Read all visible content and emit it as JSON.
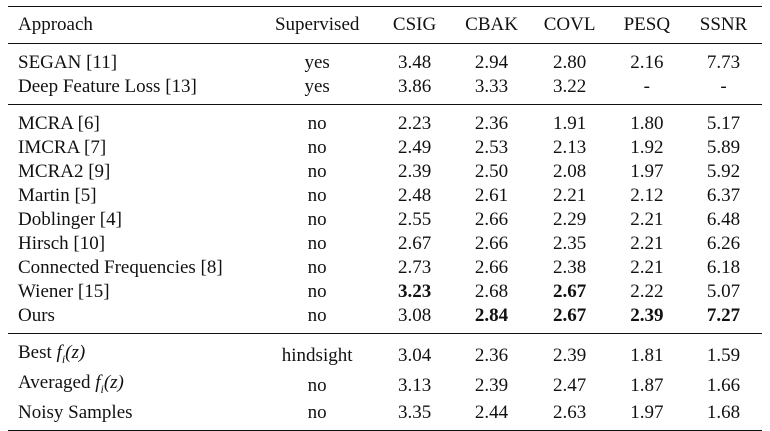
{
  "table": {
    "headers": [
      "Approach",
      "Supervised",
      "CSIG",
      "CBAK",
      "COVL",
      "PESQ",
      "SSNR"
    ],
    "groups": [
      [
        {
          "approach": "SEGAN [11]",
          "supervised": "yes",
          "csig": "3.48",
          "cbak": "2.94",
          "covl": "2.80",
          "pesq": "2.16",
          "ssnr": "7.73",
          "bold": []
        },
        {
          "approach": "Deep Feature Loss [13]",
          "supervised": "yes",
          "csig": "3.86",
          "cbak": "3.33",
          "covl": "3.22",
          "pesq": "-",
          "ssnr": "-",
          "bold": []
        }
      ],
      [
        {
          "approach": "MCRA [6]",
          "supervised": "no",
          "csig": "2.23",
          "cbak": "2.36",
          "covl": "1.91",
          "pesq": "1.80",
          "ssnr": "5.17",
          "bold": []
        },
        {
          "approach": "IMCRA [7]",
          "supervised": "no",
          "csig": "2.49",
          "cbak": "2.53",
          "covl": "2.13",
          "pesq": "1.92",
          "ssnr": "5.89",
          "bold": []
        },
        {
          "approach": "MCRA2 [9]",
          "supervised": "no",
          "csig": "2.39",
          "cbak": "2.50",
          "covl": "2.08",
          "pesq": "1.97",
          "ssnr": "5.92",
          "bold": []
        },
        {
          "approach": "Martin [5]",
          "supervised": "no",
          "csig": "2.48",
          "cbak": "2.61",
          "covl": "2.21",
          "pesq": "2.12",
          "ssnr": "6.37",
          "bold": []
        },
        {
          "approach": "Doblinger [4]",
          "supervised": "no",
          "csig": "2.55",
          "cbak": "2.66",
          "covl": "2.29",
          "pesq": "2.21",
          "ssnr": "6.48",
          "bold": []
        },
        {
          "approach": "Hirsch  [10]",
          "supervised": "no",
          "csig": "2.67",
          "cbak": "2.66",
          "covl": "2.35",
          "pesq": "2.21",
          "ssnr": "6.26",
          "bold": []
        },
        {
          "approach": "Connected Frequencies [8]",
          "supervised": "no",
          "csig": "2.73",
          "cbak": "2.66",
          "covl": "2.38",
          "pesq": "2.21",
          "ssnr": "6.18",
          "bold": []
        },
        {
          "approach": "Wiener [15]",
          "supervised": "no",
          "csig": "3.23",
          "cbak": "2.68",
          "covl": "2.67",
          "pesq": "2.22",
          "ssnr": "5.07",
          "bold": [
            "csig",
            "covl"
          ]
        },
        {
          "approach": "Ours",
          "supervised": "no",
          "csig": "3.08",
          "cbak": "2.84",
          "covl": "2.67",
          "pesq": "2.39",
          "ssnr": "7.27",
          "bold": [
            "cbak",
            "covl",
            "pesq",
            "ssnr"
          ]
        }
      ],
      [
        {
          "approach": "Best fi(z)",
          "supervised": "hindsight",
          "csig": "3.04",
          "cbak": "2.36",
          "covl": "2.39",
          "pesq": "1.81",
          "ssnr": "1.59",
          "bold": []
        },
        {
          "approach": "Averaged fi(z)",
          "supervised": "no",
          "csig": "3.13",
          "cbak": "2.39",
          "covl": "2.47",
          "pesq": "1.87",
          "ssnr": "1.66",
          "bold": []
        },
        {
          "approach": "Noisy Samples",
          "supervised": "no",
          "csig": "3.35",
          "cbak": "2.44",
          "covl": "2.63",
          "pesq": "1.97",
          "ssnr": "1.68",
          "bold": []
        }
      ]
    ]
  }
}
